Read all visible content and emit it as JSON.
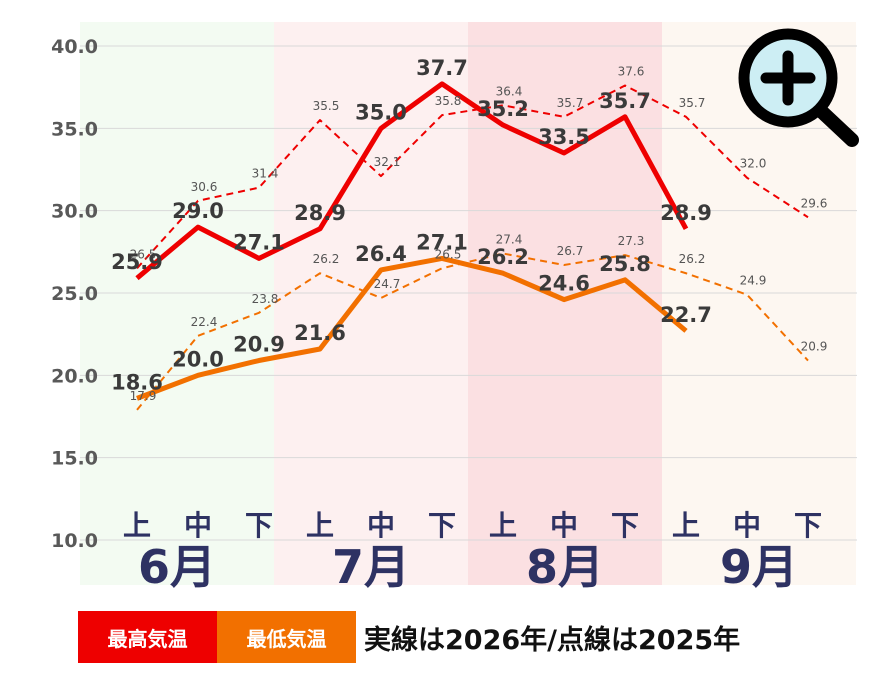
{
  "chart_data": {
    "type": "line",
    "ylim": [
      10,
      40
    ],
    "yticks": [
      "10.0",
      "15.0",
      "20.0",
      "25.0",
      "30.0",
      "35.0",
      "40.0"
    ],
    "months": [
      "6月",
      "7月",
      "8月",
      "9月"
    ],
    "dekads": [
      "上",
      "中",
      "下"
    ],
    "series": [
      {
        "name": "最高気温",
        "year": "2026",
        "style": "solid",
        "color": "#ee0000",
        "values": [
          25.9,
          29.0,
          27.1,
          28.9,
          35.0,
          37.7,
          35.2,
          33.5,
          35.7,
          28.9,
          null,
          null
        ],
        "labels": [
          "25.9",
          "29.0",
          "27.1",
          "28.9",
          "35.0",
          "37.7",
          "35.2",
          "33.5",
          "35.7",
          "28.9",
          "",
          ""
        ]
      },
      {
        "name": "最低気温",
        "year": "2026",
        "style": "solid",
        "color": "#f27000",
        "values": [
          18.6,
          20.0,
          20.9,
          21.6,
          26.4,
          27.1,
          26.2,
          24.6,
          25.8,
          22.7,
          null,
          null
        ],
        "labels": [
          "18.6",
          "20.0",
          "20.9",
          "21.6",
          "26.4",
          "27.1",
          "26.2",
          "24.6",
          "25.8",
          "22.7",
          "",
          ""
        ]
      },
      {
        "name": "最高気温",
        "year": "2025",
        "style": "dashed",
        "color": "#ee0000",
        "values": [
          26.5,
          30.6,
          31.4,
          35.5,
          32.1,
          35.8,
          36.4,
          35.7,
          37.6,
          35.7,
          32.0,
          29.6
        ],
        "labels": [
          "26.5",
          "30.6",
          "31.4",
          "35.5",
          "32.1",
          "35.8",
          "36.4",
          "35.7",
          "37.6",
          "35.7",
          "32.0",
          "29.6"
        ]
      },
      {
        "name": "最低気温",
        "year": "2025",
        "style": "dashed",
        "color": "#f27000",
        "values": [
          17.9,
          22.4,
          23.8,
          26.2,
          24.7,
          26.5,
          27.4,
          26.7,
          27.3,
          26.2,
          24.9,
          20.9
        ],
        "labels": [
          "17.9",
          "22.4",
          "23.8",
          "26.2",
          "24.7",
          "26.5",
          "27.4",
          "26.7",
          "27.3",
          "26.2",
          "24.9",
          "20.9"
        ]
      }
    ],
    "background_bands": [
      "#f3fbf2",
      "#fdf0f0",
      "#fbe0e2",
      "#fdf7f1"
    ],
    "grid": true
  },
  "legend": {
    "max_label": "最高気温",
    "min_label": "最低気温",
    "note": "実線は2026年/点線は2025年"
  },
  "zoom_icon": "zoom-in-icon"
}
